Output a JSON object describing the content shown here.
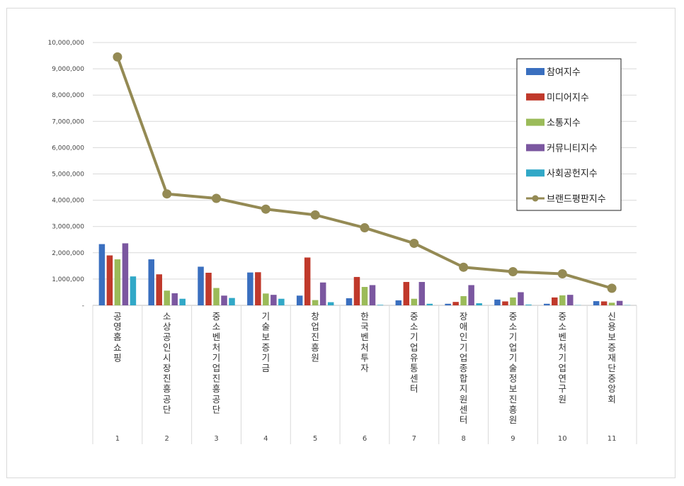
{
  "chart_data": {
    "type": "bar",
    "ylim": [
      0,
      10000000
    ],
    "yticks": [
      "-",
      "1,000,000",
      "2,000,000",
      "3,000,000",
      "4,000,000",
      "5,000,000",
      "6,000,000",
      "7,000,000",
      "8,000,000",
      "9,000,000",
      "10,000,000"
    ],
    "categories": [
      "공영홈쇼핑",
      "소상공인시장진흥공단",
      "중소벤처기업진흥공단",
      "기술보증기금",
      "창업진흥원",
      "한국벤처투자",
      "중소기업유통센터",
      "장애인기업종합지원센터",
      "중소기업기술정보진흥원",
      "중소벤처기업연구원",
      "신용보증재단중앙회"
    ],
    "ranks": [
      "1",
      "2",
      "3",
      "4",
      "5",
      "6",
      "7",
      "8",
      "9",
      "10",
      "11"
    ],
    "series": [
      {
        "name": "참여지수",
        "type": "bar",
        "color": "#3a6fbf",
        "values": [
          2330000,
          1750000,
          1470000,
          1250000,
          370000,
          270000,
          190000,
          60000,
          220000,
          60000,
          160000
        ]
      },
      {
        "name": "미디어지수",
        "type": "bar",
        "color": "#c0392b",
        "values": [
          1900000,
          1180000,
          1240000,
          1260000,
          1820000,
          1080000,
          890000,
          130000,
          150000,
          300000,
          150000
        ]
      },
      {
        "name": "소통지수",
        "type": "bar",
        "color": "#9bbb59",
        "values": [
          1750000,
          560000,
          660000,
          450000,
          200000,
          700000,
          250000,
          350000,
          300000,
          380000,
          100000
        ]
      },
      {
        "name": "커뮤니티지수",
        "type": "bar",
        "color": "#7b57a0",
        "values": [
          2360000,
          460000,
          370000,
          400000,
          870000,
          770000,
          890000,
          770000,
          500000,
          400000,
          170000
        ]
      },
      {
        "name": "사회공헌지수",
        "type": "bar",
        "color": "#31a8c7",
        "values": [
          1100000,
          250000,
          280000,
          250000,
          120000,
          20000,
          60000,
          80000,
          30000,
          10000,
          10000
        ]
      },
      {
        "name": "브랜드평판지수",
        "type": "line",
        "color": "#948a54",
        "values": [
          9450000,
          4240000,
          4070000,
          3660000,
          3440000,
          2950000,
          2360000,
          1450000,
          1280000,
          1200000,
          650000
        ]
      }
    ],
    "legend_position": "top-right",
    "grid": true
  }
}
